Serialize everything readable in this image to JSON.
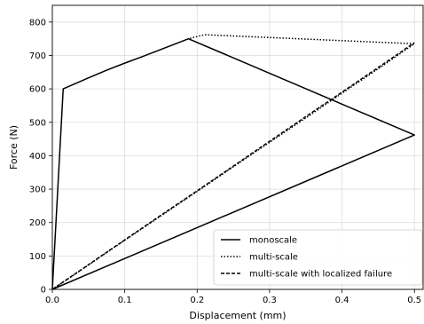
{
  "chart_data": {
    "type": "line",
    "xlabel": "Displacement (mm)",
    "ylabel": "Force (N)",
    "xlim": [
      0,
      0.512
    ],
    "ylim": [
      0,
      850
    ],
    "xticks": [
      0.0,
      0.1,
      0.2,
      0.3,
      0.4,
      0.5
    ],
    "xtick_labels": [
      "0.0",
      "0.1",
      "0.2",
      "0.3",
      "0.4",
      "0.5"
    ],
    "yticks": [
      0,
      100,
      200,
      300,
      400,
      500,
      600,
      700,
      800
    ],
    "ytick_labels": [
      "0",
      "100",
      "200",
      "300",
      "400",
      "500",
      "600",
      "700",
      "800"
    ],
    "grid": true,
    "legend_position": "lower-right",
    "series": [
      {
        "name": "monoscale",
        "style": "solid",
        "color": "#000000",
        "points": [
          [
            0.0,
            0
          ],
          [
            0.015,
            600
          ],
          [
            0.03,
            614
          ],
          [
            0.05,
            633
          ],
          [
            0.075,
            656
          ],
          [
            0.1,
            677
          ],
          [
            0.125,
            697
          ],
          [
            0.15,
            718
          ],
          [
            0.175,
            739
          ],
          [
            0.188,
            750
          ],
          [
            0.5,
            462
          ],
          [
            0.0,
            0
          ]
        ]
      },
      {
        "name": "multi-scale",
        "style": "dotted",
        "color": "#000000",
        "points": [
          [
            0.0,
            0
          ],
          [
            0.05,
            73
          ],
          [
            0.1,
            147
          ],
          [
            0.15,
            220
          ],
          [
            0.2,
            293
          ],
          [
            0.25,
            367
          ],
          [
            0.3,
            440
          ],
          [
            0.35,
            513
          ],
          [
            0.4,
            587
          ],
          [
            0.45,
            660
          ],
          [
            0.5,
            735
          ],
          [
            0.21,
            762
          ],
          [
            0.188,
            750
          ]
        ]
      },
      {
        "name": "multi-scale with localized failure",
        "style": "dashed",
        "color": "#000000",
        "points": [
          [
            0.0,
            0
          ],
          [
            0.05,
            74
          ],
          [
            0.1,
            148
          ],
          [
            0.15,
            222
          ],
          [
            0.2,
            295
          ],
          [
            0.25,
            369
          ],
          [
            0.3,
            443
          ],
          [
            0.35,
            517
          ],
          [
            0.4,
            590
          ],
          [
            0.45,
            664
          ],
          [
            0.5,
            738
          ]
        ]
      }
    ]
  }
}
